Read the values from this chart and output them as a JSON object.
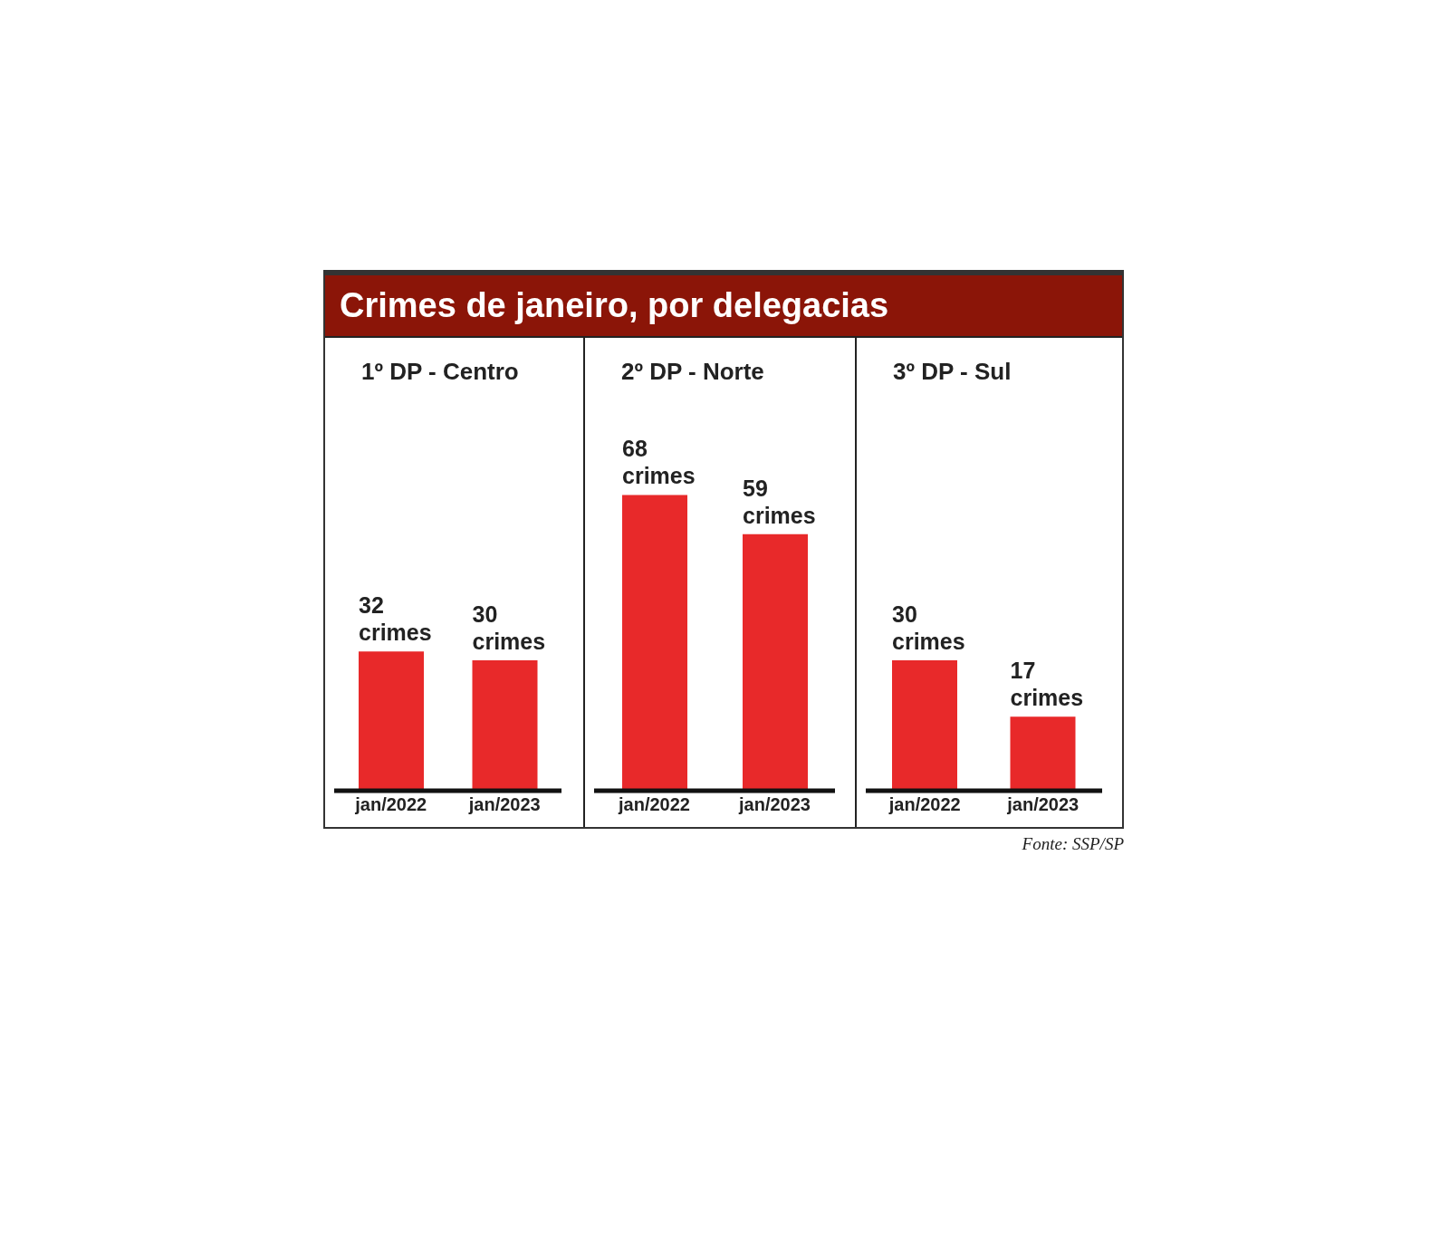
{
  "chart_data": [
    {
      "type": "bar",
      "title": "Crimes de janeiro, por delegacias",
      "subtitle": "1º DP - Centro",
      "categories": [
        "jan/2022",
        "jan/2023"
      ],
      "values": [
        32,
        30
      ],
      "color": "#e8292a",
      "value_labels": [
        "32 crimes",
        "30 crimes"
      ]
    },
    {
      "type": "bar",
      "subtitle": "2º DP - Norte",
      "categories": [
        "jan/2022",
        "jan/2023"
      ],
      "values": [
        68,
        59
      ],
      "color": "#e8292a",
      "value_labels": [
        "68 crimes",
        "59 crimes"
      ]
    },
    {
      "type": "bar",
      "subtitle": "3º DP - Sul",
      "categories": [
        "jan/2022",
        "jan/2023"
      ],
      "values": [
        30,
        17
      ],
      "color": "#e8292a",
      "value_labels": [
        "30 crimes",
        "17 crimes"
      ],
      "annotations": [
        "Fonte: SSP/SP"
      ]
    }
  ]
}
